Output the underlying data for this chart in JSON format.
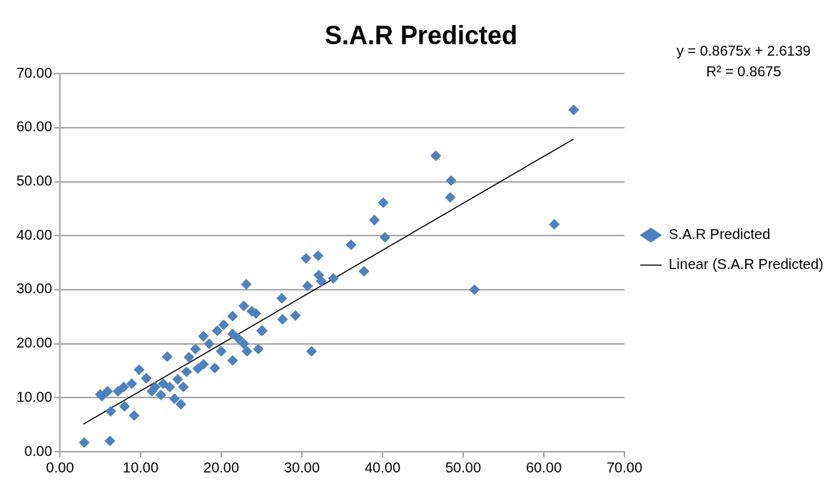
{
  "chart_data": {
    "type": "scatter",
    "title": "S.A.R Predicted",
    "annotations": [
      "y = 0.8675x + 2.6139",
      "R² = 0.8675"
    ],
    "xlim": [
      0,
      70
    ],
    "xticks": [
      {
        "value": 0,
        "label": "0.00"
      },
      {
        "value": 10,
        "label": "10.00"
      },
      {
        "value": 20,
        "label": "20.00"
      },
      {
        "value": 30,
        "label": "30.00"
      },
      {
        "value": 40,
        "label": "40.00"
      },
      {
        "value": 50,
        "label": "50.00"
      },
      {
        "value": 60,
        "label": "60.00"
      },
      {
        "value": 70,
        "label": "70.00"
      }
    ],
    "ylim": [
      0,
      70
    ],
    "yticks": [
      {
        "value": 0,
        "label": "0.00"
      },
      {
        "value": 10,
        "label": "10.00"
      },
      {
        "value": 20,
        "label": "20.00"
      },
      {
        "value": 30,
        "label": "30.00"
      },
      {
        "value": 40,
        "label": "40.00"
      },
      {
        "value": 50,
        "label": "50.00"
      },
      {
        "value": 60,
        "label": "60.00"
      },
      {
        "value": 70,
        "label": "70.00"
      }
    ],
    "grid": "y",
    "legend": "right",
    "series": [
      {
        "name": "S.A.R Predicted",
        "type": "scatter",
        "marker": "diamond",
        "color": "#4f81bd",
        "x": [
          3.0,
          6.2,
          6.3,
          9.2,
          5.2,
          8.0,
          5.9,
          7.9,
          9.8,
          13.3,
          10.7,
          11.4,
          12.5,
          15.0,
          14.2,
          12.8,
          14.6,
          15.3,
          16.0,
          17.1,
          17.8,
          19.5,
          20.3,
          21.4,
          22.8,
          23.1,
          24.3,
          25.1,
          24.6,
          22.8,
          21.4,
          19.2,
          18.5,
          27.5,
          27.6,
          29.2,
          30.7,
          31.2,
          21.4,
          23.2,
          16.8,
          15.7,
          13.6,
          11.8,
          8.9,
          7.2,
          5.0,
          17.8,
          20.0,
          22.1,
          30.5,
          32.0,
          36.1,
          39.0,
          40.1,
          40.3,
          46.6,
          48.5,
          48.4,
          61.3,
          63.7,
          51.4,
          37.7,
          33.9,
          32.1,
          32.4,
          23.8,
          25.0
        ],
        "values": [
          1.7,
          2.0,
          7.5,
          6.7,
          10.3,
          8.4,
          11.2,
          12.0,
          15.2,
          17.6,
          13.6,
          11.2,
          10.5,
          8.8,
          9.8,
          12.6,
          13.4,
          12.0,
          17.5,
          15.4,
          21.4,
          22.4,
          23.5,
          25.1,
          27.0,
          31.0,
          25.6,
          22.4,
          19.0,
          20.0,
          16.9,
          15.5,
          20.0,
          28.4,
          24.5,
          25.2,
          30.7,
          18.6,
          21.8,
          18.6,
          19.0,
          14.8,
          12.0,
          12.0,
          12.6,
          11.2,
          10.6,
          16.2,
          18.6,
          21.0,
          35.8,
          36.3,
          38.3,
          42.9,
          46.1,
          39.7,
          54.8,
          50.2,
          47.1,
          42.1,
          63.3,
          30.0,
          33.4,
          32.1,
          32.7,
          31.6,
          26.0,
          22.4
        ]
      },
      {
        "name": "Linear (S.A.R Predicted)",
        "type": "line",
        "marker": "none",
        "line_style": "solid",
        "color": "#000000",
        "x": [
          2.9,
          63.7
        ],
        "values": [
          5.1,
          57.9
        ]
      }
    ]
  }
}
